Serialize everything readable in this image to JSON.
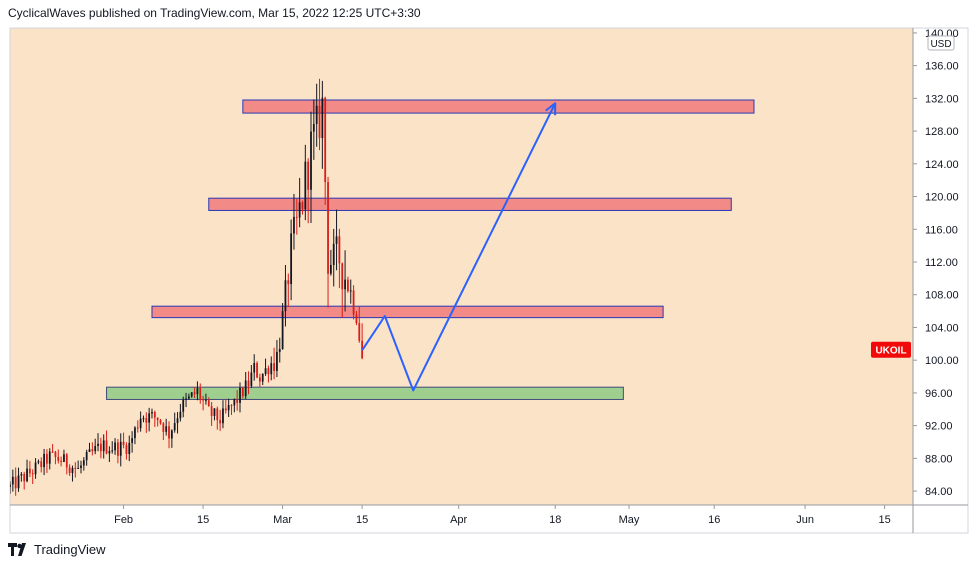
{
  "header": {
    "publisher": "CyclicalWaves",
    "published_text": "published on",
    "site": "TradingView.com,",
    "datetime": "Mar 15, 2022 12:25 UTC+3:30"
  },
  "footer": {
    "brand": "TradingView"
  },
  "colors": {
    "background": "#fbe3c8",
    "zone_red_fill": "#f28b87",
    "zone_red_stroke": "#2637b8",
    "zone_green_fill": "#9fcf8e",
    "up_candle": "#131722",
    "down_candle": "#d91e18",
    "projection": "#2962ff",
    "badge": "#f20a0a"
  },
  "chart_data": {
    "type": "candlestick",
    "symbol_badge": "UKOIL",
    "currency": "USD",
    "ylim": [
      82.3,
      140.6
    ],
    "xlim": [
      "2022-01-12",
      "2022-06-20"
    ],
    "y_ticks": [
      "84.00",
      "88.00",
      "92.00",
      "96.00",
      "100.00",
      "104.00",
      "108.00",
      "112.00",
      "116.00",
      "120.00",
      "124.00",
      "128.00",
      "132.00",
      "136.00",
      "140.00"
    ],
    "x_ticks": [
      {
        "date": "2022-02-01",
        "label": "Feb"
      },
      {
        "date": "2022-02-15",
        "label": "15"
      },
      {
        "date": "2022-03-01",
        "label": "Mar"
      },
      {
        "date": "2022-03-15",
        "label": "15"
      },
      {
        "date": "2022-04-01",
        "label": "Apr"
      },
      {
        "date": "2022-04-18",
        "label": "18"
      },
      {
        "date": "2022-05-01",
        "label": "May"
      },
      {
        "date": "2022-05-16",
        "label": "16"
      },
      {
        "date": "2022-06-01",
        "label": "Jun"
      },
      {
        "date": "2022-06-15",
        "label": "15"
      }
    ],
    "zones": [
      {
        "kind": "resistance",
        "start": "2022-02-22",
        "end": "2022-05-23",
        "top": 131.8,
        "bottom": 130.2
      },
      {
        "kind": "resistance",
        "start": "2022-02-16",
        "end": "2022-05-19",
        "top": 119.8,
        "bottom": 118.3
      },
      {
        "kind": "resistance",
        "start": "2022-02-06",
        "end": "2022-05-07",
        "top": 106.6,
        "bottom": 105.2
      },
      {
        "kind": "support",
        "start": "2022-01-29",
        "end": "2022-04-30",
        "top": 96.7,
        "bottom": 95.2
      }
    ],
    "projection": [
      {
        "x": "2022-03-15",
        "y": 101.2
      },
      {
        "x": "2022-03-19",
        "y": 105.4
      },
      {
        "x": "2022-03-24",
        "y": 96.3
      },
      {
        "x": "2022-04-18",
        "y": 131.4
      }
    ],
    "price_points": [
      [
        "2022-01-12",
        84.5
      ],
      [
        "2022-01-14",
        85.5
      ],
      [
        "2022-01-17",
        87.0
      ],
      [
        "2022-01-19",
        88.2
      ],
      [
        "2022-01-21",
        87.8
      ],
      [
        "2022-01-24",
        86.6
      ],
      [
        "2022-01-26",
        88.3
      ],
      [
        "2022-01-28",
        89.5
      ],
      [
        "2022-01-31",
        89.3
      ],
      [
        "2022-02-02",
        89.6
      ],
      [
        "2022-02-04",
        93.2
      ],
      [
        "2022-02-07",
        93.0
      ],
      [
        "2022-02-09",
        91.0
      ],
      [
        "2022-02-11",
        94.2
      ],
      [
        "2022-02-14",
        96.2
      ],
      [
        "2022-02-16",
        93.6
      ],
      [
        "2022-02-18",
        92.7
      ],
      [
        "2022-02-21",
        95.2
      ],
      [
        "2022-02-23",
        97.2
      ],
      [
        "2022-02-24",
        99.0
      ],
      [
        "2022-02-25",
        97.9
      ],
      [
        "2022-02-28",
        100.5
      ],
      [
        "2022-03-01",
        105.0
      ],
      [
        "2022-03-02",
        111.0
      ],
      [
        "2022-03-03",
        114.5
      ],
      [
        "2022-03-04",
        118.0
      ],
      [
        "2022-03-06",
        126.0
      ],
      [
        "2022-03-07",
        128.0
      ],
      [
        "2022-03-08",
        131.0
      ],
      [
        "2022-03-09",
        113.0
      ],
      [
        "2022-03-10",
        111.5
      ],
      [
        "2022-03-11",
        112.6
      ],
      [
        "2022-03-14",
        106.0
      ],
      [
        "2022-03-15",
        100.3
      ]
    ]
  }
}
